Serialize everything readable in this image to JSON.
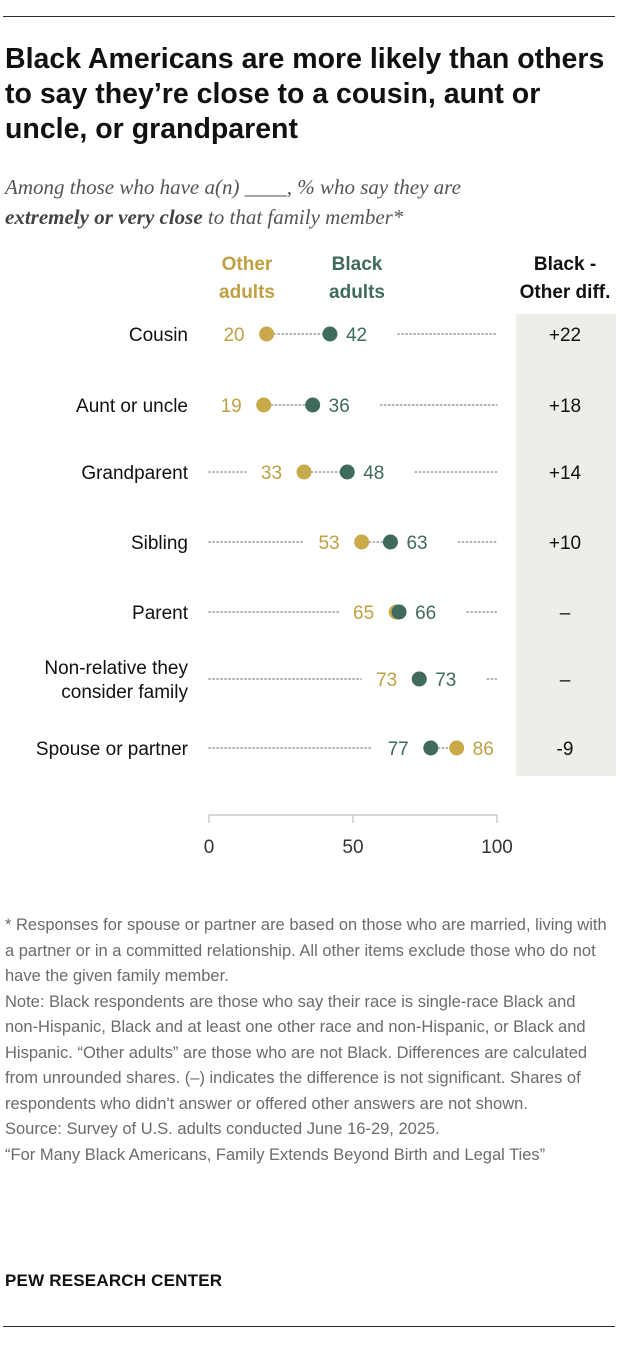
{
  "title": "Black Americans are more likely than others to say they’re close to a cousin, aunt or uncle, or grandparent",
  "subtitle_pre": "Among those who have a(n) ____, % who say they are",
  "subtitle_bold": "extremely or very close",
  "subtitle_post": " to that family member*",
  "chart_data": {
    "type": "dot",
    "categories": [
      "Cousin",
      "Aunt or uncle",
      "Grandparent",
      "Sibling",
      "Parent",
      "Non-relative they consider family",
      "Spouse or partner"
    ],
    "category_lines": [
      [
        "Cousin"
      ],
      [
        "Aunt or uncle"
      ],
      [
        "Grandparent"
      ],
      [
        "Sibling"
      ],
      [
        "Parent"
      ],
      [
        "Non-relative they",
        "consider family"
      ],
      [
        "Spouse or partner"
      ]
    ],
    "series": [
      {
        "legend": [
          "Other",
          "adults"
        ],
        "values": [
          20,
          19,
          33,
          53,
          65,
          73,
          86
        ],
        "color": "#c9a94a",
        "label_color": "#bfa042"
      },
      {
        "legend": [
          "Black",
          "adults"
        ],
        "values": [
          42,
          36,
          48,
          63,
          66,
          73,
          77
        ],
        "color": "#3f6b5c",
        "label_color": "#3f6b5c"
      }
    ],
    "diff_header": [
      "Black -",
      "Other diff."
    ],
    "diff": [
      "+22",
      "+18",
      "+14",
      "+10",
      "–",
      "–",
      "-9"
    ],
    "xlim": [
      0,
      100
    ],
    "xticks": [
      "0",
      "50",
      "100"
    ]
  },
  "notes": [
    "* Responses for spouse or partner are based on those who are married, living with a partner or in a committed relationship. All other items exclude those who do not have the given family member.",
    "Note: Black respondents are those who say their race is single-race Black and non-Hispanic, Black and at least one other race and non-Hispanic, or Black and Hispanic. “Other adults” are those who are not Black. Differences are calculated from unrounded shares. (–) indicates the difference is not significant. Shares of respondents who didn't answer or offered other answers are not shown.",
    "Source: Survey of U.S. adults conducted June 16-29, 2025.",
    "“For Many Black Americans, Family Extends Beyond Birth and Legal Ties”"
  ],
  "brand": "PEW RESEARCH CENTER"
}
